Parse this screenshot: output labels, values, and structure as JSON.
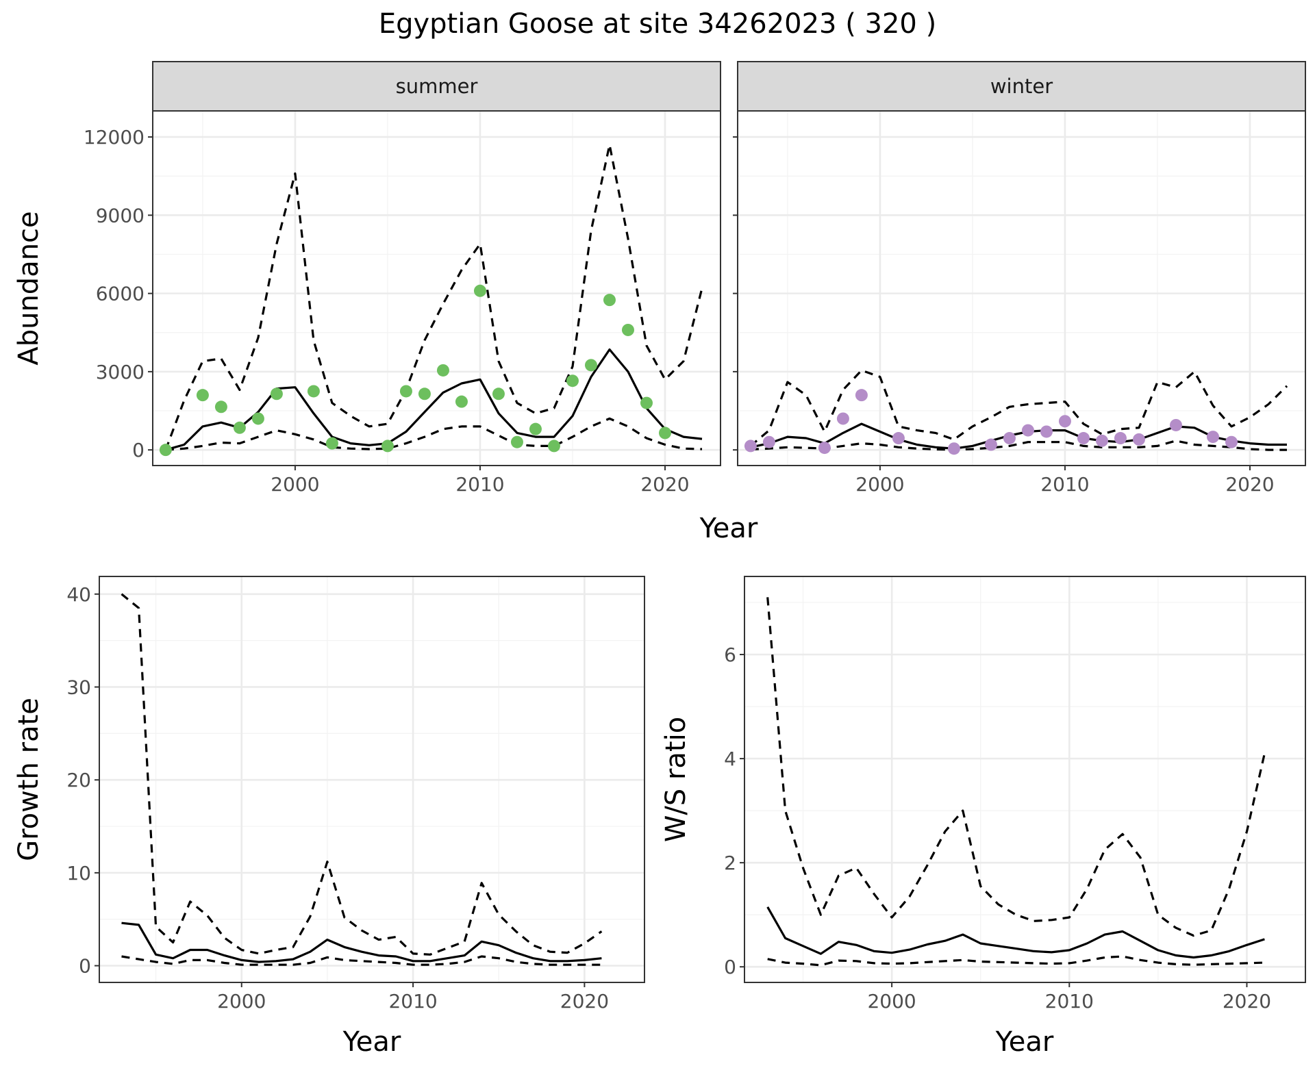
{
  "title": "Egyptian Goose at site 34262023 ( 320 )",
  "colors": {
    "summer_points": "#6dbf5e",
    "winter_points": "#b48dc8",
    "lines": "#000000",
    "strip": "#d9d9d9"
  },
  "chart_data": [
    {
      "id": "abundance",
      "type": "line",
      "facets": [
        "summer",
        "winter"
      ],
      "xlabel": "Year",
      "ylabel": "Abundance",
      "xlim": [
        1992.3,
        2023.0
      ],
      "ylim": [
        -600,
        13000
      ],
      "xticks": [
        2000,
        2010,
        2020
      ],
      "yticks": [
        0,
        3000,
        6000,
        9000,
        12000
      ],
      "grid": true,
      "panels": [
        {
          "facet": "summer",
          "x": [
            1993,
            1994,
            1995,
            1996,
            1997,
            1998,
            1999,
            2000,
            2001,
            2002,
            2003,
            2004,
            2005,
            2006,
            2007,
            2008,
            2009,
            2010,
            2011,
            2012,
            2013,
            2014,
            2015,
            2016,
            2017,
            2018,
            2019,
            2020,
            2021,
            2022
          ],
          "mean": [
            0,
            200,
            900,
            1050,
            850,
            1450,
            2350,
            2400,
            1400,
            500,
            250,
            180,
            250,
            700,
            1450,
            2200,
            2550,
            2700,
            1400,
            650,
            500,
            500,
            1300,
            2800,
            3850,
            3000,
            1600,
            800,
            500,
            420
          ],
          "lower": [
            0,
            50,
            150,
            280,
            250,
            500,
            750,
            600,
            400,
            100,
            50,
            30,
            50,
            250,
            500,
            800,
            900,
            900,
            550,
            200,
            150,
            150,
            500,
            900,
            1200,
            900,
            450,
            200,
            50,
            30
          ],
          "upper": [
            0,
            1900,
            3400,
            3500,
            2300,
            4300,
            7900,
            10600,
            4200,
            1800,
            1300,
            900,
            1000,
            2300,
            4200,
            5600,
            6900,
            7900,
            3400,
            1800,
            1400,
            1600,
            3200,
            8400,
            11700,
            8100,
            4000,
            2700,
            3400,
            6200
          ],
          "points": [
            {
              "x": 1993,
              "y": 0
            },
            {
              "x": 1995,
              "y": 2100
            },
            {
              "x": 1996,
              "y": 1650
            },
            {
              "x": 1997,
              "y": 850
            },
            {
              "x": 1998,
              "y": 1200
            },
            {
              "x": 1999,
              "y": 2150
            },
            {
              "x": 2001,
              "y": 2250
            },
            {
              "x": 2002,
              "y": 250
            },
            {
              "x": 2005,
              "y": 150
            },
            {
              "x": 2006,
              "y": 2250
            },
            {
              "x": 2007,
              "y": 2150
            },
            {
              "x": 2008,
              "y": 3050
            },
            {
              "x": 2009,
              "y": 1850
            },
            {
              "x": 2010,
              "y": 6100
            },
            {
              "x": 2011,
              "y": 2150
            },
            {
              "x": 2012,
              "y": 300
            },
            {
              "x": 2013,
              "y": 800
            },
            {
              "x": 2014,
              "y": 150
            },
            {
              "x": 2015,
              "y": 2650
            },
            {
              "x": 2016,
              "y": 3250
            },
            {
              "x": 2017,
              "y": 5750
            },
            {
              "x": 2018,
              "y": 4600
            },
            {
              "x": 2019,
              "y": 1800
            },
            {
              "x": 2020,
              "y": 650
            }
          ]
        },
        {
          "facet": "winter",
          "x": [
            1993,
            1994,
            1995,
            1996,
            1997,
            1998,
            1999,
            2000,
            2001,
            2002,
            2003,
            2004,
            2005,
            2006,
            2007,
            2008,
            2009,
            2010,
            2011,
            2012,
            2013,
            2014,
            2015,
            2016,
            2017,
            2018,
            2019,
            2020,
            2021,
            2022
          ],
          "mean": [
            100,
            250,
            500,
            450,
            250,
            650,
            1000,
            700,
            400,
            200,
            100,
            50,
            150,
            350,
            550,
            700,
            750,
            750,
            450,
            350,
            300,
            400,
            650,
            900,
            850,
            500,
            350,
            250,
            200,
            200
          ],
          "lower": [
            20,
            50,
            100,
            80,
            50,
            150,
            250,
            200,
            100,
            50,
            20,
            10,
            30,
            80,
            150,
            300,
            300,
            300,
            150,
            100,
            100,
            100,
            150,
            350,
            200,
            150,
            100,
            30,
            0,
            0
          ],
          "upper": [
            150,
            750,
            2600,
            2100,
            700,
            2300,
            3050,
            2800,
            900,
            750,
            650,
            400,
            900,
            1250,
            1650,
            1750,
            1800,
            1850,
            1000,
            600,
            800,
            850,
            2600,
            2400,
            3000,
            1700,
            900,
            1250,
            1750,
            2450
          ],
          "points": [
            {
              "x": 1993,
              "y": 150
            },
            {
              "x": 1994,
              "y": 300
            },
            {
              "x": 1997,
              "y": 80
            },
            {
              "x": 1998,
              "y": 1200
            },
            {
              "x": 1999,
              "y": 2100
            },
            {
              "x": 2001,
              "y": 450
            },
            {
              "x": 2004,
              "y": 50
            },
            {
              "x": 2006,
              "y": 200
            },
            {
              "x": 2007,
              "y": 450
            },
            {
              "x": 2008,
              "y": 750
            },
            {
              "x": 2009,
              "y": 700
            },
            {
              "x": 2010,
              "y": 1100
            },
            {
              "x": 2011,
              "y": 450
            },
            {
              "x": 2012,
              "y": 350
            },
            {
              "x": 2013,
              "y": 450
            },
            {
              "x": 2014,
              "y": 400
            },
            {
              "x": 2016,
              "y": 950
            },
            {
              "x": 2018,
              "y": 500
            },
            {
              "x": 2019,
              "y": 300
            }
          ]
        }
      ]
    },
    {
      "id": "growth",
      "type": "line",
      "xlabel": "Year",
      "ylabel": "Growth rate",
      "xlim": [
        1991.7,
        2023.5
      ],
      "ylim": [
        -1.8,
        41.9
      ],
      "xticks": [
        2000,
        2010,
        2020
      ],
      "yticks": [
        0,
        10,
        20,
        30,
        40
      ],
      "grid": true,
      "x": [
        1993,
        1994,
        1995,
        1996,
        1997,
        1998,
        1999,
        2000,
        2001,
        2002,
        2003,
        2004,
        2005,
        2006,
        2007,
        2008,
        2009,
        2010,
        2011,
        2012,
        2013,
        2014,
        2015,
        2016,
        2017,
        2018,
        2019,
        2020,
        2021
      ],
      "mean": [
        4.6,
        4.4,
        1.2,
        0.8,
        1.7,
        1.7,
        1.1,
        0.6,
        0.4,
        0.5,
        0.7,
        1.5,
        2.8,
        2.0,
        1.5,
        1.1,
        1.0,
        0.5,
        0.5,
        0.8,
        1.1,
        2.6,
        2.2,
        1.4,
        0.8,
        0.5,
        0.5,
        0.6,
        0.8
      ],
      "lower": [
        1.0,
        0.7,
        0.4,
        0.2,
        0.6,
        0.6,
        0.3,
        0.1,
        0.1,
        0.1,
        0.1,
        0.3,
        0.9,
        0.6,
        0.5,
        0.4,
        0.3,
        0.1,
        0.1,
        0.2,
        0.4,
        1.0,
        0.8,
        0.4,
        0.2,
        0.1,
        0.1,
        0.1,
        0.1
      ],
      "upper": [
        40,
        38.5,
        4.2,
        2.5,
        6.9,
        5.4,
        3.0,
        1.7,
        1.3,
        1.7,
        2.0,
        5.3,
        11.2,
        5.2,
        3.8,
        2.8,
        3.1,
        1.3,
        1.2,
        1.9,
        2.6,
        8.9,
        5.5,
        3.7,
        2.2,
        1.5,
        1.4,
        2.4,
        3.7
      ]
    },
    {
      "id": "ws_ratio",
      "type": "line",
      "xlabel": "Year",
      "ylabel": "W/S ratio",
      "xlim": [
        1991.7,
        2023.3
      ],
      "ylim": [
        -0.3,
        7.5
      ],
      "xticks": [
        2000,
        2010,
        2020
      ],
      "yticks": [
        0,
        2,
        4,
        6
      ],
      "grid": true,
      "x": [
        1993,
        1994,
        1995,
        1996,
        1997,
        1998,
        1999,
        2000,
        2001,
        2002,
        2003,
        2004,
        2005,
        2006,
        2007,
        2008,
        2009,
        2010,
        2011,
        2012,
        2013,
        2014,
        2015,
        2016,
        2017,
        2018,
        2019,
        2020,
        2021
      ],
      "mean": [
        1.15,
        0.55,
        0.4,
        0.25,
        0.48,
        0.42,
        0.3,
        0.27,
        0.33,
        0.43,
        0.5,
        0.62,
        0.45,
        0.4,
        0.35,
        0.3,
        0.28,
        0.32,
        0.45,
        0.62,
        0.68,
        0.5,
        0.32,
        0.22,
        0.18,
        0.22,
        0.3,
        0.42,
        0.53
      ],
      "lower": [
        0.15,
        0.08,
        0.06,
        0.03,
        0.12,
        0.11,
        0.07,
        0.06,
        0.07,
        0.09,
        0.11,
        0.13,
        0.1,
        0.09,
        0.08,
        0.07,
        0.06,
        0.07,
        0.12,
        0.18,
        0.2,
        0.13,
        0.08,
        0.05,
        0.04,
        0.05,
        0.06,
        0.07,
        0.08
      ],
      "upper": [
        7.1,
        3.0,
        1.9,
        1.0,
        1.75,
        1.9,
        1.4,
        0.95,
        1.35,
        1.95,
        2.6,
        3.0,
        1.55,
        1.2,
        1.0,
        0.88,
        0.9,
        0.95,
        1.5,
        2.25,
        2.55,
        2.1,
        1.0,
        0.75,
        0.6,
        0.7,
        1.5,
        2.6,
        4.1
      ]
    }
  ]
}
